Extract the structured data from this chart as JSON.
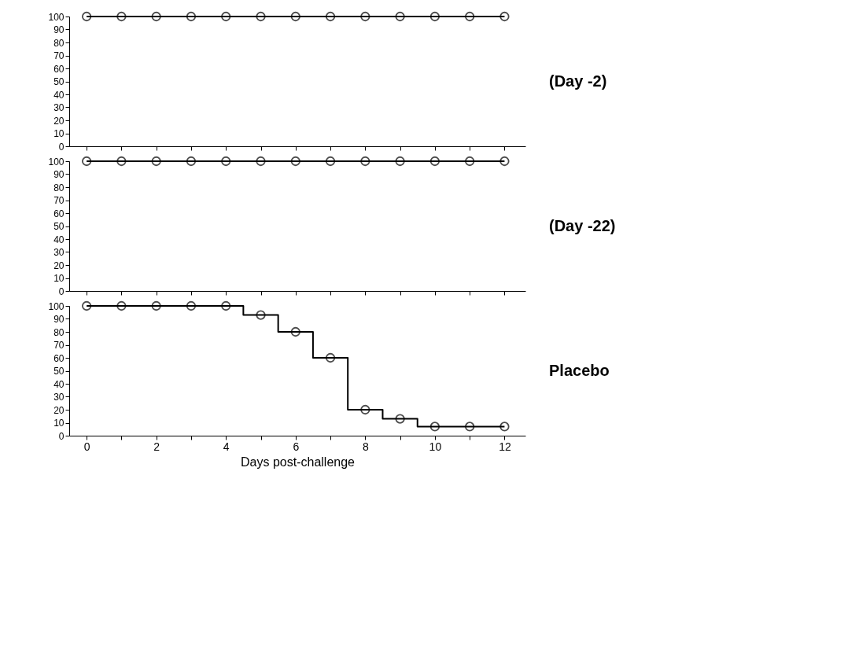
{
  "chart_data": [
    {
      "type": "step",
      "x": [
        0,
        1,
        2,
        3,
        4,
        5,
        6,
        7,
        8,
        9,
        10,
        11,
        12
      ],
      "series": [
        {
          "color": "#000000",
          "values": [
            100,
            100,
            100,
            100,
            100,
            100,
            100,
            100,
            100,
            100,
            100,
            100,
            100
          ]
        }
      ],
      "marker": "circle",
      "xlim": [
        -0.5,
        12.6
      ],
      "ylim": [
        0,
        100
      ],
      "xticks": [
        0,
        {
          "value": 1,
          "label": null
        },
        2,
        {
          "value": 3,
          "label": null
        },
        4,
        {
          "value": 5,
          "label": null
        },
        6,
        {
          "value": 7,
          "label": null
        },
        8,
        {
          "value": 9,
          "label": null
        },
        10,
        {
          "value": 11,
          "label": null
        },
        12
      ],
      "yticks": [
        0,
        10,
        20,
        30,
        40,
        50,
        60,
        70,
        80,
        90,
        100
      ],
      "tick_labels": "y",
      "annotations": [
        "(Day -2)"
      ]
    },
    {
      "type": "step",
      "x": [
        0,
        1,
        2,
        3,
        4,
        5,
        6,
        7,
        8,
        9,
        10,
        11,
        12
      ],
      "series": [
        {
          "color": "#000000",
          "values": [
            100,
            100,
            100,
            100,
            100,
            100,
            100,
            100,
            100,
            100,
            100,
            100,
            100
          ]
        }
      ],
      "marker": "circle",
      "xlim": [
        -0.5,
        12.6
      ],
      "ylim": [
        0,
        100
      ],
      "xticks": [
        0,
        {
          "value": 1,
          "label": null
        },
        2,
        {
          "value": 3,
          "label": null
        },
        4,
        {
          "value": 5,
          "label": null
        },
        6,
        {
          "value": 7,
          "label": null
        },
        8,
        {
          "value": 9,
          "label": null
        },
        10,
        {
          "value": 11,
          "label": null
        },
        12
      ],
      "yticks": [
        0,
        10,
        20,
        30,
        40,
        50,
        60,
        70,
        80,
        90,
        100
      ],
      "tick_labels": "y",
      "annotations": [
        "(Day -22)"
      ]
    },
    {
      "type": "step",
      "x": [
        0,
        1,
        2,
        3,
        4,
        5,
        6,
        7,
        8,
        9,
        10,
        11,
        12
      ],
      "series": [
        {
          "color": "#000000",
          "values": [
            100,
            100,
            100,
            100,
            100,
            93,
            80,
            60,
            20,
            13,
            7,
            7,
            7
          ]
        }
      ],
      "marker": "circle",
      "xlim": [
        -0.5,
        12.6
      ],
      "ylim": [
        0,
        100
      ],
      "xticks": [
        0,
        {
          "value": 1,
          "label": null
        },
        2,
        {
          "value": 3,
          "label": null
        },
        4,
        {
          "value": 5,
          "label": null
        },
        6,
        {
          "value": 7,
          "label": null
        },
        8,
        {
          "value": 9,
          "label": null
        },
        10,
        {
          "value": 11,
          "label": null
        },
        12
      ],
      "yticks": [
        0,
        10,
        20,
        30,
        40,
        50,
        60,
        70,
        80,
        90,
        100
      ],
      "xlabel": "Days post-challenge",
      "annotations": [
        "Placebo"
      ]
    }
  ]
}
